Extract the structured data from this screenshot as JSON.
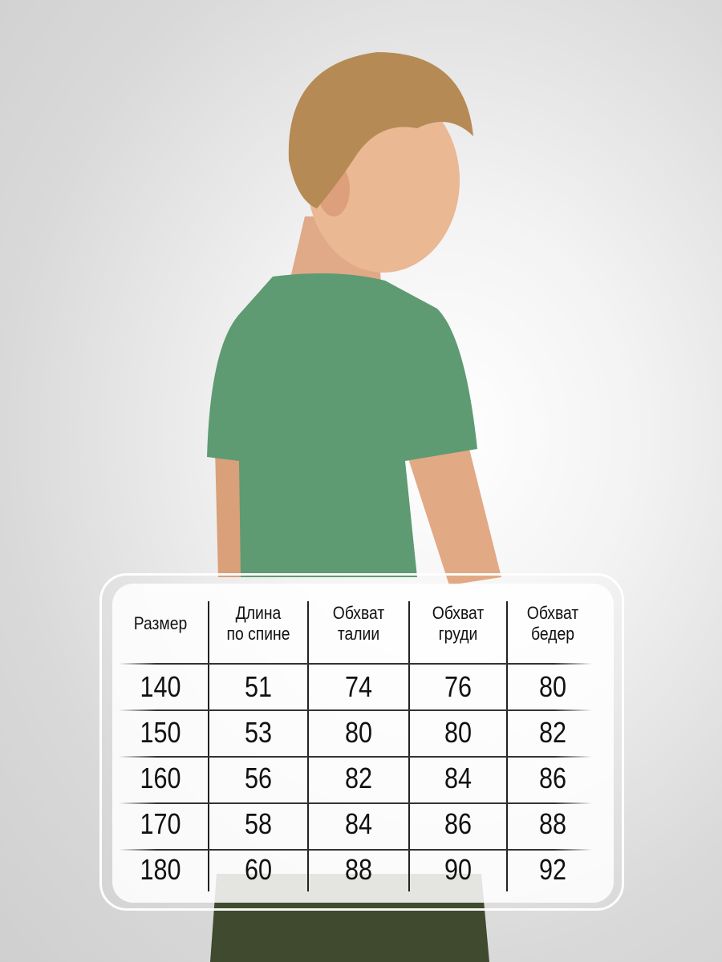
{
  "size_table": {
    "headers": [
      "Размер",
      "Длина\nпо спине",
      "Обхват\nталии",
      "Обхват\nгруди",
      "Обхват\nбедер"
    ],
    "rows": [
      [
        "140",
        "51",
        "74",
        "76",
        "80"
      ],
      [
        "150",
        "53",
        "80",
        "80",
        "82"
      ],
      [
        "160",
        "56",
        "82",
        "84",
        "86"
      ],
      [
        "170",
        "58",
        "84",
        "86",
        "88"
      ],
      [
        "180",
        "60",
        "88",
        "90",
        "92"
      ]
    ]
  },
  "colors": {
    "shirt": "#5e9a72",
    "pants": "#3f4a2e",
    "hair": "#b58a55",
    "skin": "#e8b48f"
  }
}
